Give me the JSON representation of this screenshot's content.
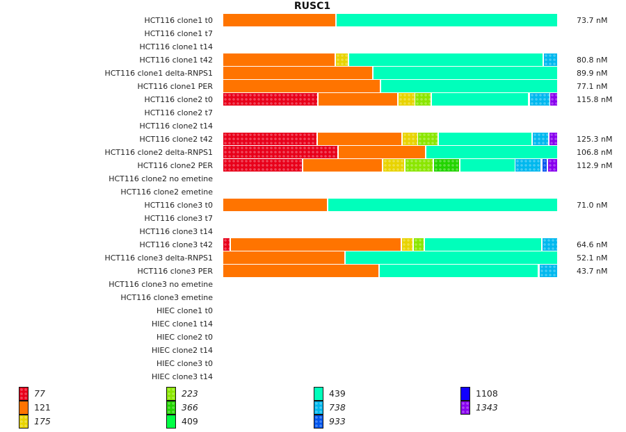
{
  "chart_data": {
    "type": "bar",
    "orientation": "horizontal-stacked-100",
    "title": "RUSC1",
    "value_unit": "nM",
    "categories": [
      "HCT116 clone1 t0",
      "HCT116 clone1 t7",
      "HCT116 clone1 t14",
      "HCT116 clone1 t42",
      "HCT116 clone1 delta-RNPS1",
      "HCT116 clone1 PER",
      "HCT116 clone2 t0",
      "HCT116 clone2 t7",
      "HCT116 clone2 t14",
      "HCT116 clone2 t42",
      "HCT116 clone2 delta-RNPS1",
      "HCT116 clone2 PER",
      "HCT116 clone2 no emetine",
      "HCT116 clone2 emetine",
      "HCT116 clone3 t0",
      "HCT116 clone3 t7",
      "HCT116 clone3 t14",
      "HCT116 clone3 t42",
      "HCT116 clone3 delta-RNPS1",
      "HCT116 clone3 PER",
      "HCT116 clone3 no emetine",
      "HCT116 clone3 emetine",
      "HIEC clone1 t0",
      "HIEC clone1 t14",
      "HIEC clone2 t0",
      "HIEC clone2 t14",
      "HIEC clone3 t0",
      "HIEC clone3 t14"
    ],
    "totals": [
      "73.7 nM",
      "",
      "",
      "80.8 nM",
      "89.9 nM",
      "77.1 nM",
      "115.8 nM",
      "",
      "",
      "125.3 nM",
      "106.8 nM",
      "112.9 nM",
      "",
      "",
      "71.0 nM",
      "",
      "",
      "64.6 nM",
      "52.1 nM",
      "43.7 nM",
      "",
      "",
      "",
      "",
      "",
      "",
      "",
      ""
    ],
    "segments_note": "fraction of each row's total by isoform length",
    "rows": [
      [
        {
          "k": "121",
          "f": 0.34
        },
        {
          "k": "439",
          "f": 0.66
        }
      ],
      [],
      [],
      [
        {
          "k": "121",
          "f": 0.337
        },
        {
          "k": "175",
          "f": 0.04
        },
        {
          "k": "439",
          "f": 0.583
        },
        {
          "k": "738",
          "f": 0.04
        }
      ],
      [
        {
          "k": "121",
          "f": 0.45
        },
        {
          "k": "439",
          "f": 0.55
        }
      ],
      [
        {
          "k": "121",
          "f": 0.473
        },
        {
          "k": "439",
          "f": 0.527
        }
      ],
      [
        {
          "k": "77",
          "f": 0.285
        },
        {
          "k": "121",
          "f": 0.239
        },
        {
          "k": "175",
          "f": 0.052
        },
        {
          "k": "223",
          "f": 0.05
        },
        {
          "k": "439",
          "f": 0.292
        },
        {
          "k": "738",
          "f": 0.062
        },
        {
          "k": "1343",
          "f": 0.02
        }
      ],
      [],
      [],
      [
        {
          "k": "77",
          "f": 0.283
        },
        {
          "k": "121",
          "f": 0.254
        },
        {
          "k": "175",
          "f": 0.047
        },
        {
          "k": "223",
          "f": 0.062
        },
        {
          "k": "439",
          "f": 0.281
        },
        {
          "k": "738",
          "f": 0.051
        },
        {
          "k": "1343",
          "f": 0.022
        }
      ],
      [
        {
          "k": "77",
          "f": 0.346
        },
        {
          "k": "121",
          "f": 0.263
        },
        {
          "k": "439",
          "f": 0.391
        }
      ],
      [
        {
          "k": "77",
          "f": 0.24
        },
        {
          "k": "121",
          "f": 0.24
        },
        {
          "k": "175",
          "f": 0.066
        },
        {
          "k": "223",
          "f": 0.085
        },
        {
          "k": "366",
          "f": 0.079
        },
        {
          "k": "439",
          "f": 0.166
        },
        {
          "k": "738",
          "f": 0.08
        },
        {
          "k": "933",
          "f": 0.017
        },
        {
          "k": "1343",
          "f": 0.027
        }
      ],
      [],
      [],
      [
        {
          "k": "121",
          "f": 0.315
        },
        {
          "k": "439",
          "f": 0.685
        }
      ],
      [],
      [],
      [
        {
          "k": "77",
          "f": 0.023
        },
        {
          "k": "121",
          "f": 0.513
        },
        {
          "k": "175",
          "f": 0.035
        },
        {
          "k": "223",
          "f": 0.033
        },
        {
          "k": "439",
          "f": 0.352
        },
        {
          "k": "738",
          "f": 0.044
        }
      ],
      [
        {
          "k": "121",
          "f": 0.367
        },
        {
          "k": "439",
          "f": 0.633
        }
      ],
      [
        {
          "k": "121",
          "f": 0.469
        },
        {
          "k": "439",
          "f": 0.478
        },
        {
          "k": "738",
          "f": 0.053
        }
      ],
      [],
      [],
      [],
      [],
      [],
      [],
      [],
      []
    ],
    "legend": [
      {
        "key": "77",
        "label": "77",
        "color": "#e8001a",
        "patterned": true
      },
      {
        "key": "121",
        "label": "121",
        "color": "#ff7400",
        "patterned": false
      },
      {
        "key": "175",
        "label": "175",
        "color": "#e8d300",
        "patterned": true
      },
      {
        "key": "223",
        "label": "223",
        "color": "#8ae600",
        "patterned": true
      },
      {
        "key": "366",
        "label": "366",
        "color": "#22d400",
        "patterned": true
      },
      {
        "key": "409",
        "label": "409",
        "color": "#00ff44",
        "patterned": false
      },
      {
        "key": "439",
        "label": "439",
        "color": "#00ffbb",
        "patterned": false
      },
      {
        "key": "738",
        "label": "738",
        "color": "#00b8ee",
        "patterned": true
      },
      {
        "key": "933",
        "label": "933",
        "color": "#0055ee",
        "patterned": true
      },
      {
        "key": "1108",
        "label": "1108",
        "color": "#1100ff",
        "patterned": false
      },
      {
        "key": "1343",
        "label": "1343",
        "color": "#8800ee",
        "patterned": true
      }
    ]
  }
}
